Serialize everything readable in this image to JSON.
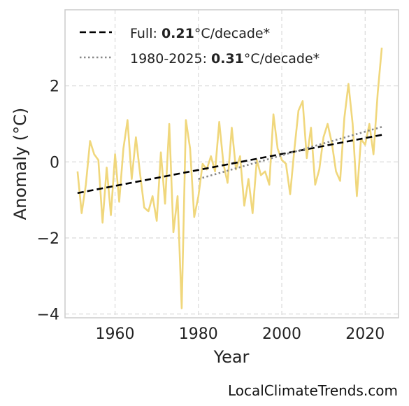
{
  "chart_data": {
    "type": "line",
    "xlabel": "Year",
    "ylabel": "Anomaly (°C)",
    "xlim": [
      1948,
      2028
    ],
    "ylim": [
      -4.1,
      4.0
    ],
    "xticks": [
      1960,
      1980,
      2000,
      2020
    ],
    "xtick_labels": [
      "1960",
      "1980",
      "2000",
      "2020"
    ],
    "yticks": [
      -4,
      -2,
      0,
      2
    ],
    "ytick_labels": [
      "−4",
      "−2",
      "0",
      "2"
    ],
    "grid": true,
    "legend_position": "top-left",
    "series": [
      {
        "kind": "data",
        "color": "#f0d77c",
        "x": [
          1951,
          1952,
          1953,
          1954,
          1955,
          1956,
          1957,
          1958,
          1959,
          1960,
          1961,
          1962,
          1963,
          1964,
          1965,
          1966,
          1967,
          1968,
          1969,
          1970,
          1971,
          1972,
          1973,
          1974,
          1975,
          1976,
          1977,
          1978,
          1979,
          1980,
          1981,
          1982,
          1983,
          1984,
          1985,
          1986,
          1987,
          1988,
          1989,
          1990,
          1991,
          1992,
          1993,
          1994,
          1995,
          1996,
          1997,
          1998,
          1999,
          2000,
          2001,
          2002,
          2003,
          2004,
          2005,
          2006,
          2007,
          2008,
          2009,
          2010,
          2011,
          2012,
          2013,
          2014,
          2015,
          2016,
          2017,
          2018,
          2019,
          2020,
          2021,
          2022,
          2023,
          2024
        ],
        "y": [
          -0.25,
          -1.35,
          -0.6,
          0.55,
          0.2,
          0.05,
          -1.6,
          -0.15,
          -1.4,
          0.2,
          -1.05,
          0.35,
          1.1,
          -0.45,
          0.65,
          -0.3,
          -1.2,
          -1.3,
          -0.9,
          -1.55,
          0.25,
          -1.1,
          1.0,
          -1.85,
          -0.9,
          -3.85,
          1.1,
          0.35,
          -1.45,
          -0.9,
          -0.05,
          -0.2,
          0.15,
          -0.25,
          1.05,
          -0.05,
          -0.55,
          0.9,
          -0.2,
          0.15,
          -1.15,
          -0.45,
          -1.35,
          0.05,
          -0.35,
          -0.25,
          -0.6,
          1.25,
          0.35,
          0.05,
          -0.05,
          -0.85,
          0.3,
          1.35,
          1.6,
          0.1,
          0.9,
          -0.6,
          -0.2,
          0.65,
          1.0,
          0.5,
          -0.25,
          -0.5,
          1.15,
          2.05,
          1.0,
          -0.9,
          0.6,
          0.45,
          1.0,
          0.2,
          1.8,
          3.0
        ]
      },
      {
        "kind": "trend",
        "name": "Full",
        "color": "#000000",
        "style": "dashed",
        "x": [
          1951,
          2024
        ],
        "y": [
          -0.82,
          0.71
        ]
      },
      {
        "kind": "trend",
        "name": "1980-2025",
        "color": "#888888",
        "style": "dotted",
        "x": [
          1980,
          2024
        ],
        "y": [
          -0.45,
          0.92
        ]
      }
    ],
    "legend": [
      {
        "prefix": "Full: ",
        "value": "0.21",
        "suffix": "°C/decade*",
        "style": "dashed",
        "color": "#000000"
      },
      {
        "prefix": "1980-2025: ",
        "value": "0.31",
        "suffix": "°C/decade*",
        "style": "dotted",
        "color": "#888888"
      }
    ]
  },
  "source_text": "LocalClimateTrends.com"
}
